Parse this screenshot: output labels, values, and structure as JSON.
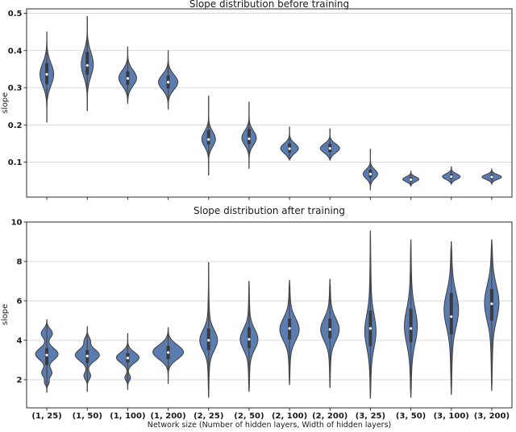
{
  "figure": {
    "title_top": "Slope distribution before training",
    "title_bottom": "Slope distribution after training",
    "ylabel": "slope",
    "xlabel": "Network size (Number of hidden layers, Width of hidden layers)"
  },
  "colors": {
    "violin_fill": "#5b7cb0",
    "violin_edge": "#3d3d3d",
    "inner_line": "#4a4a4a",
    "inner_box": "#3a3a3a",
    "median_dot": "#ffffff",
    "grid": "#d9d9d9",
    "spine": "#3c3c3c",
    "tick": "#333333",
    "text": "#1a1a1a"
  },
  "chart_data": [
    {
      "type": "violin",
      "title": "Slope distribution before training",
      "ylabel": "slope",
      "xlabel": "",
      "grid": true,
      "inner": "box",
      "ylim": [
        0.006,
        0.512
      ],
      "yticks": [
        0.1,
        0.2,
        0.3,
        0.4,
        0.5
      ],
      "ytick_labels": [
        "0.1",
        "0.2",
        "0.3",
        "0.4",
        "0.5"
      ],
      "xtick_labels_visible": false,
      "categories": [
        "(1, 25)",
        "(1, 50)",
        "(1, 100)",
        "(1, 200)",
        "(2, 25)",
        "(2, 50)",
        "(2, 100)",
        "(2, 200)",
        "(3, 25)",
        "(3, 50)",
        "(3, 100)",
        "(3, 200)"
      ],
      "violins": [
        {
          "category": "(1, 25)",
          "min": 0.207,
          "max": 0.45,
          "q1": 0.31,
          "median": 0.336,
          "q3": 0.366,
          "halfwidth": 8.5,
          "modes": [
            [
              0.336,
              0.03,
              1
            ]
          ]
        },
        {
          "category": "(1, 50)",
          "min": 0.238,
          "max": 0.492,
          "q1": 0.335,
          "median": 0.36,
          "q3": 0.396,
          "halfwidth": 7.5,
          "modes": [
            [
              0.363,
              0.032,
              1
            ]
          ]
        },
        {
          "category": "(1, 100)",
          "min": 0.258,
          "max": 0.41,
          "q1": 0.308,
          "median": 0.325,
          "q3": 0.344,
          "halfwidth": 11,
          "modes": [
            [
              0.326,
              0.021,
              1
            ]
          ]
        },
        {
          "category": "(1, 200)",
          "min": 0.242,
          "max": 0.4,
          "q1": 0.298,
          "median": 0.315,
          "q3": 0.333,
          "halfwidth": 12,
          "modes": [
            [
              0.315,
              0.02,
              1
            ]
          ]
        },
        {
          "category": "(2, 25)",
          "min": 0.065,
          "max": 0.278,
          "q1": 0.147,
          "median": 0.161,
          "q3": 0.186,
          "halfwidth": 8.5,
          "modes": [
            [
              0.162,
              0.02,
              1
            ]
          ]
        },
        {
          "category": "(2, 50)",
          "min": 0.083,
          "max": 0.262,
          "q1": 0.148,
          "median": 0.163,
          "q3": 0.189,
          "halfwidth": 9,
          "modes": [
            [
              0.165,
              0.019,
              1
            ]
          ]
        },
        {
          "category": "(2, 100)",
          "min": 0.105,
          "max": 0.195,
          "q1": 0.126,
          "median": 0.136,
          "q3": 0.15,
          "halfwidth": 11,
          "modes": [
            [
              0.137,
              0.013,
              1
            ]
          ]
        },
        {
          "category": "(2, 200)",
          "min": 0.105,
          "max": 0.19,
          "q1": 0.127,
          "median": 0.137,
          "q3": 0.149,
          "halfwidth": 12,
          "modes": [
            [
              0.137,
              0.012,
              1
            ]
          ]
        },
        {
          "category": "(3, 25)",
          "min": 0.025,
          "max": 0.135,
          "q1": 0.059,
          "median": 0.068,
          "q3": 0.08,
          "halfwidth": 9,
          "modes": [
            [
              0.068,
              0.012,
              1
            ]
          ]
        },
        {
          "category": "(3, 50)",
          "min": 0.035,
          "max": 0.076,
          "q1": 0.048,
          "median": 0.053,
          "q3": 0.06,
          "halfwidth": 10,
          "modes": [
            [
              0.054,
              0.0065,
              1
            ]
          ]
        },
        {
          "category": "(3, 100)",
          "min": 0.04,
          "max": 0.088,
          "q1": 0.055,
          "median": 0.061,
          "q3": 0.068,
          "halfwidth": 11,
          "modes": [
            [
              0.061,
              0.0075,
              1
            ]
          ]
        },
        {
          "category": "(3, 200)",
          "min": 0.04,
          "max": 0.082,
          "q1": 0.054,
          "median": 0.06,
          "q3": 0.066,
          "halfwidth": 12,
          "modes": [
            [
              0.06,
              0.0065,
              1
            ]
          ]
        }
      ]
    },
    {
      "type": "violin",
      "title": "Slope distribution after training",
      "ylabel": "slope",
      "xlabel": "Network size (Number of hidden layers, Width of hidden layers)",
      "grid": true,
      "inner": "box",
      "ylim": [
        0.57,
        10.0
      ],
      "yticks": [
        2,
        4,
        6,
        8,
        10
      ],
      "ytick_labels": [
        "2",
        "4",
        "6",
        "8",
        "10"
      ],
      "xtick_labels_visible": true,
      "categories": [
        "(1, 25)",
        "(1, 50)",
        "(1, 100)",
        "(1, 200)",
        "(2, 25)",
        "(2, 50)",
        "(2, 100)",
        "(2, 200)",
        "(3, 25)",
        "(3, 50)",
        "(3, 100)",
        "(3, 200)"
      ],
      "violins": [
        {
          "category": "(1, 25)",
          "min": 1.35,
          "max": 5.05,
          "q1": 2.75,
          "median": 3.25,
          "q3": 3.6,
          "halfwidth": 14,
          "modes": [
            [
              3.3,
              0.3,
              1
            ],
            [
              4.35,
              0.22,
              0.5
            ],
            [
              2.35,
              0.22,
              0.45
            ],
            [
              1.85,
              0.12,
              0.18
            ]
          ]
        },
        {
          "category": "(1, 50)",
          "min": 1.4,
          "max": 4.7,
          "q1": 2.85,
          "median": 3.2,
          "q3": 3.5,
          "halfwidth": 15,
          "modes": [
            [
              3.25,
              0.3,
              1
            ],
            [
              2.2,
              0.18,
              0.28
            ],
            [
              4.0,
              0.18,
              0.22
            ]
          ]
        },
        {
          "category": "(1, 100)",
          "min": 1.5,
          "max": 4.35,
          "q1": 2.88,
          "median": 3.1,
          "q3": 3.35,
          "halfwidth": 14,
          "modes": [
            [
              3.12,
              0.27,
              1
            ],
            [
              2.1,
              0.15,
              0.25
            ]
          ]
        },
        {
          "category": "(1, 200)",
          "min": 1.8,
          "max": 4.65,
          "q1": 3.05,
          "median": 3.38,
          "q3": 3.72,
          "halfwidth": 19,
          "modes": [
            [
              3.4,
              0.36,
              1
            ]
          ]
        },
        {
          "category": "(2, 25)",
          "min": 1.1,
          "max": 7.95,
          "q1": 3.5,
          "median": 4.0,
          "q3": 4.6,
          "halfwidth": 11,
          "modes": [
            [
              4.0,
              0.5,
              1
            ],
            [
              4.0,
              1.5,
              0.15
            ]
          ]
        },
        {
          "category": "(2, 50)",
          "min": 1.4,
          "max": 7.0,
          "q1": 3.6,
          "median": 4.05,
          "q3": 4.65,
          "halfwidth": 11,
          "modes": [
            [
              4.05,
              0.5,
              1
            ],
            [
              4.0,
              1.5,
              0.15
            ]
          ]
        },
        {
          "category": "(2, 100)",
          "min": 1.75,
          "max": 7.05,
          "q1": 4.05,
          "median": 4.6,
          "q3": 5.1,
          "halfwidth": 12,
          "modes": [
            [
              4.55,
              0.55,
              1
            ],
            [
              4.5,
              1.5,
              0.15
            ]
          ]
        },
        {
          "category": "(2, 200)",
          "min": 1.6,
          "max": 7.1,
          "q1": 4.1,
          "median": 4.55,
          "q3": 5.1,
          "halfwidth": 11.5,
          "modes": [
            [
              4.55,
              0.55,
              1
            ],
            [
              4.5,
              1.5,
              0.15
            ]
          ]
        },
        {
          "category": "(3, 25)",
          "min": 1.05,
          "max": 9.55,
          "q1": 3.7,
          "median": 4.6,
          "q3": 5.5,
          "halfwidth": 7,
          "modes": [
            [
              4.45,
              0.8,
              1
            ],
            [
              4.8,
              2.2,
              0.25
            ]
          ]
        },
        {
          "category": "(3, 50)",
          "min": 1.1,
          "max": 9.1,
          "q1": 3.9,
          "median": 4.6,
          "q3": 5.6,
          "halfwidth": 8,
          "modes": [
            [
              4.7,
              0.85,
              1
            ],
            [
              4.8,
              2.2,
              0.25
            ]
          ]
        },
        {
          "category": "(3, 100)",
          "min": 1.25,
          "max": 9.0,
          "q1": 4.3,
          "median": 5.2,
          "q3": 6.4,
          "halfwidth": 9,
          "modes": [
            [
              5.55,
              0.85,
              1
            ],
            [
              5.3,
              2.2,
              0.25
            ]
          ]
        },
        {
          "category": "(3, 200)",
          "min": 1.45,
          "max": 9.1,
          "q1": 5.0,
          "median": 5.85,
          "q3": 6.6,
          "halfwidth": 9,
          "modes": [
            [
              5.9,
              0.85,
              1
            ],
            [
              5.6,
              2.2,
              0.22
            ]
          ]
        }
      ]
    }
  ]
}
